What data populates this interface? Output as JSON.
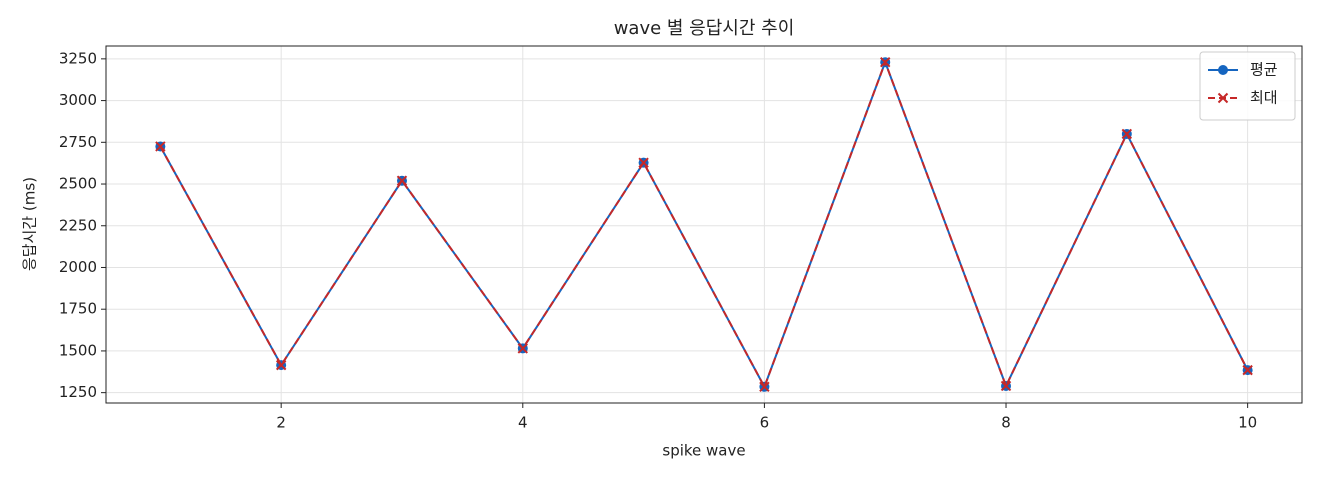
{
  "chart_data": {
    "type": "line",
    "title": "wave 별 응답시간 추이",
    "x_label": "spike wave",
    "y_label": "응답시간 (ms)",
    "x": [
      1,
      2,
      3,
      4,
      5,
      6,
      7,
      8,
      9,
      10
    ],
    "series": [
      {
        "name": "평균",
        "color": "#1565c0",
        "marker": "o",
        "linestyle": "solid",
        "values": [
          2725,
          1415,
          2520,
          1515,
          2628,
          1285,
          3230,
          1290,
          2800,
          1385
        ]
      },
      {
        "name": "최대",
        "color": "#c62828",
        "marker": "x",
        "linestyle": "dashed",
        "values": [
          2725,
          1415,
          2520,
          1515,
          2628,
          1285,
          3230,
          1290,
          2800,
          1385
        ]
      }
    ],
    "xlim": [
      0.55,
      10.45
    ],
    "xticks": [
      2,
      4,
      6,
      8,
      10
    ],
    "ylim": [
      1188,
      3327
    ],
    "yticks": [
      1250,
      1500,
      1750,
      2000,
      2250,
      2500,
      2750,
      3000,
      3250
    ],
    "grid": true,
    "legend": "upper right"
  }
}
